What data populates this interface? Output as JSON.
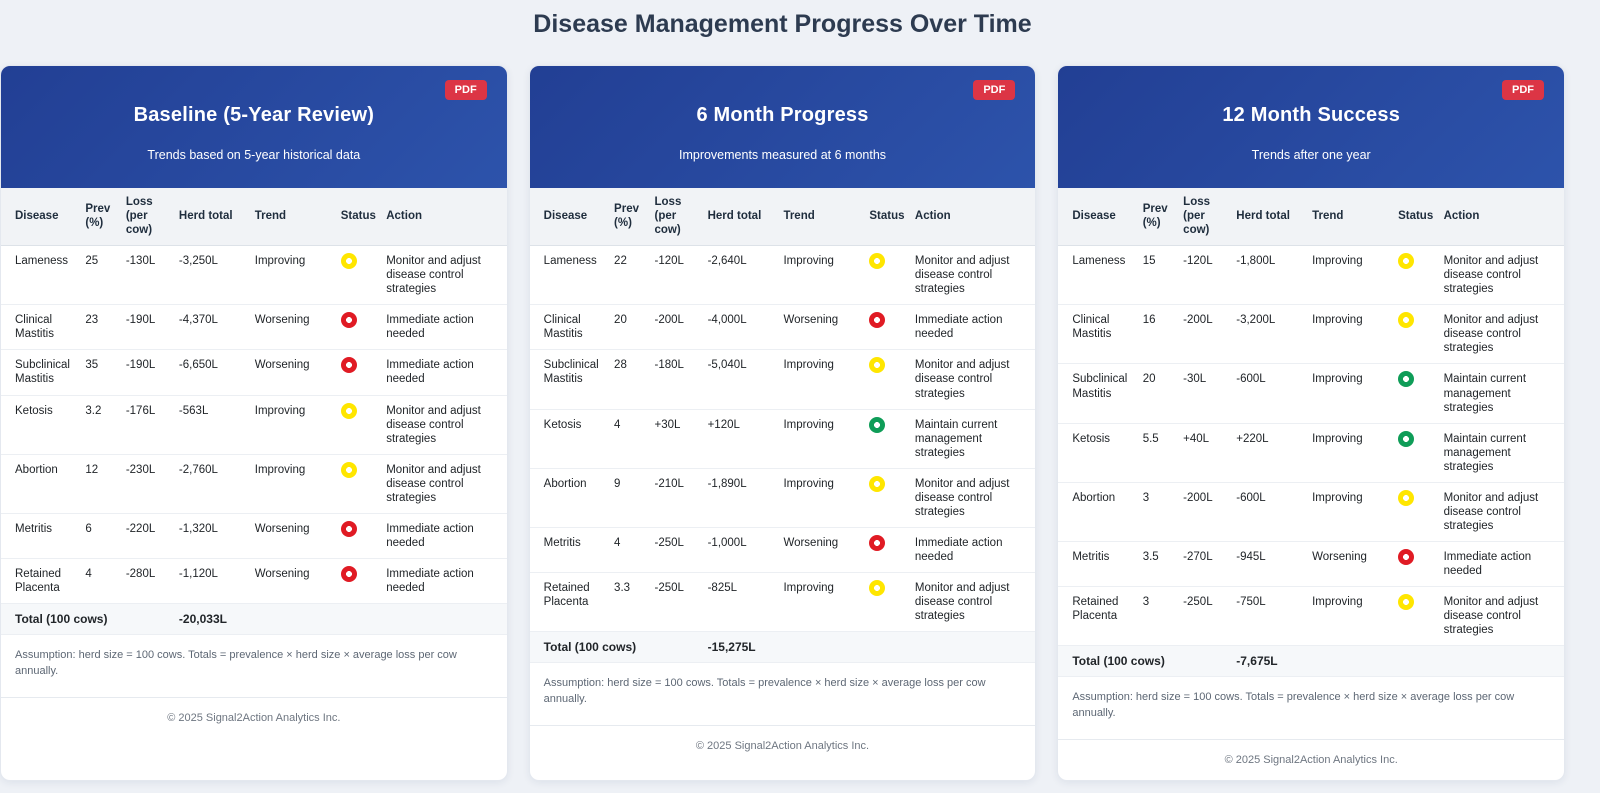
{
  "page_title": "Disease Management Progress Over Time",
  "badge_label": "PDF",
  "table_headers": [
    "Disease",
    "Prev (%)",
    "Loss (per cow)",
    "Herd total",
    "Trend",
    "Status",
    "Action"
  ],
  "total_label": "Total (100 cows)",
  "assumption_note": "Assumption: herd size = 100 cows. Totals = prevalence × herd size × average loss per cow annually.",
  "copyright": "© 2025 Signal2Action Analytics Inc.",
  "status_colors": {
    "yellow": "#ffe600",
    "red": "#e01b24",
    "green": "#0f9d58"
  },
  "accent_colors": {
    "header_gradient_start": "#223f94",
    "header_gradient_end": "#2d53ab",
    "pdf_badge": "#dc3545",
    "page_background": "#eef1f6"
  },
  "cards": [
    {
      "title": "Baseline (5-Year Review)",
      "subtitle": "Trends based on 5-year historical data",
      "total_value": "-20,033L",
      "rows": [
        {
          "disease": "Lameness",
          "prev": "25",
          "loss": "-130L",
          "herd_total": "-3,250L",
          "trend": "Improving",
          "status": "yellow",
          "action": "Monitor and adjust disease control strategies"
        },
        {
          "disease": "Clinical Mastitis",
          "prev": "23",
          "loss": "-190L",
          "herd_total": "-4,370L",
          "trend": "Worsening",
          "status": "red",
          "action": "Immediate action needed"
        },
        {
          "disease": "Subclinical Mastitis",
          "prev": "35",
          "loss": "-190L",
          "herd_total": "-6,650L",
          "trend": "Worsening",
          "status": "red",
          "action": "Immediate action needed"
        },
        {
          "disease": "Ketosis",
          "prev": "3.2",
          "loss": "-176L",
          "herd_total": "-563L",
          "trend": "Improving",
          "status": "yellow",
          "action": "Monitor and adjust disease control strategies"
        },
        {
          "disease": "Abortion",
          "prev": "12",
          "loss": "-230L",
          "herd_total": "-2,760L",
          "trend": "Improving",
          "status": "yellow",
          "action": "Monitor and adjust disease control strategies"
        },
        {
          "disease": "Metritis",
          "prev": "6",
          "loss": "-220L",
          "herd_total": "-1,320L",
          "trend": "Worsening",
          "status": "red",
          "action": "Immediate action needed"
        },
        {
          "disease": "Retained Placenta",
          "prev": "4",
          "loss": "-280L",
          "herd_total": "-1,120L",
          "trend": "Worsening",
          "status": "red",
          "action": "Immediate action needed"
        }
      ]
    },
    {
      "title": "6 Month Progress",
      "subtitle": "Improvements measured at 6 months",
      "total_value": "-15,275L",
      "rows": [
        {
          "disease": "Lameness",
          "prev": "22",
          "loss": "-120L",
          "herd_total": "-2,640L",
          "trend": "Improving",
          "status": "yellow",
          "action": "Monitor and adjust disease control strategies"
        },
        {
          "disease": "Clinical Mastitis",
          "prev": "20",
          "loss": "-200L",
          "herd_total": "-4,000L",
          "trend": "Worsening",
          "status": "red",
          "action": "Immediate action needed"
        },
        {
          "disease": "Subclinical Mastitis",
          "prev": "28",
          "loss": "-180L",
          "herd_total": "-5,040L",
          "trend": "Improving",
          "status": "yellow",
          "action": "Monitor and adjust disease control strategies"
        },
        {
          "disease": "Ketosis",
          "prev": "4",
          "loss": "+30L",
          "herd_total": "+120L",
          "trend": "Improving",
          "status": "green",
          "action": "Maintain current management strategies"
        },
        {
          "disease": "Abortion",
          "prev": "9",
          "loss": "-210L",
          "herd_total": "-1,890L",
          "trend": "Improving",
          "status": "yellow",
          "action": "Monitor and adjust disease control strategies"
        },
        {
          "disease": "Metritis",
          "prev": "4",
          "loss": "-250L",
          "herd_total": "-1,000L",
          "trend": "Worsening",
          "status": "red",
          "action": "Immediate action needed"
        },
        {
          "disease": "Retained Placenta",
          "prev": "3.3",
          "loss": "-250L",
          "herd_total": "-825L",
          "trend": "Improving",
          "status": "yellow",
          "action": "Monitor and adjust disease control strategies"
        }
      ]
    },
    {
      "title": "12 Month Success",
      "subtitle": "Trends after one year",
      "total_value": "-7,675L",
      "rows": [
        {
          "disease": "Lameness",
          "prev": "15",
          "loss": "-120L",
          "herd_total": "-1,800L",
          "trend": "Improving",
          "status": "yellow",
          "action": "Monitor and adjust disease control strategies"
        },
        {
          "disease": "Clinical Mastitis",
          "prev": "16",
          "loss": "-200L",
          "herd_total": "-3,200L",
          "trend": "Improving",
          "status": "yellow",
          "action": "Monitor and adjust disease control strategies"
        },
        {
          "disease": "Subclinical Mastitis",
          "prev": "20",
          "loss": "-30L",
          "herd_total": "-600L",
          "trend": "Improving",
          "status": "green",
          "action": "Maintain current management strategies"
        },
        {
          "disease": "Ketosis",
          "prev": "5.5",
          "loss": "+40L",
          "herd_total": "+220L",
          "trend": "Improving",
          "status": "green",
          "action": "Maintain current management strategies"
        },
        {
          "disease": "Abortion",
          "prev": "3",
          "loss": "-200L",
          "herd_total": "-600L",
          "trend": "Improving",
          "status": "yellow",
          "action": "Monitor and adjust disease control strategies"
        },
        {
          "disease": "Metritis",
          "prev": "3.5",
          "loss": "-270L",
          "herd_total": "-945L",
          "trend": "Worsening",
          "status": "red",
          "action": "Immediate action needed"
        },
        {
          "disease": "Retained Placenta",
          "prev": "3",
          "loss": "-250L",
          "herd_total": "-750L",
          "trend": "Improving",
          "status": "yellow",
          "action": "Monitor and adjust disease control strategies"
        }
      ]
    }
  ]
}
